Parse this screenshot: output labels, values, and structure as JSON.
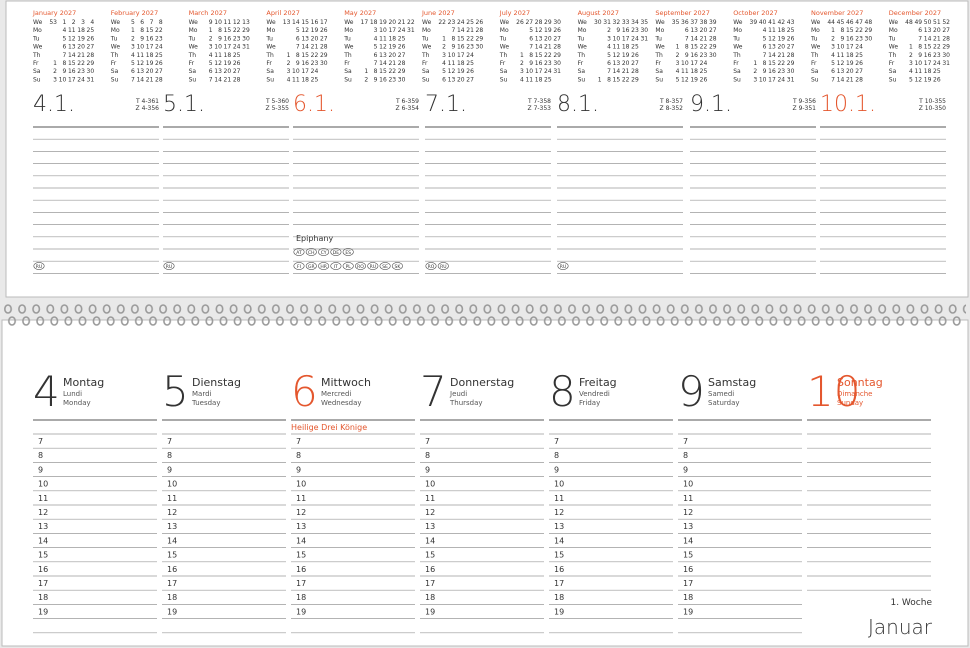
{
  "top": {
    "row_labels": [
      "We",
      "Mo",
      "Tu",
      "We",
      "Th",
      "Fr",
      "Sa",
      "Su"
    ],
    "months": [
      {
        "name": "January 2027",
        "weeks": [
          53,
          1,
          2,
          3,
          4
        ],
        "days": [
          [
            null,
            4,
            11,
            18,
            25
          ],
          [
            null,
            5,
            12,
            19,
            26
          ],
          [
            null,
            6,
            13,
            20,
            27
          ],
          [
            null,
            7,
            14,
            21,
            28
          ],
          [
            1,
            8,
            15,
            22,
            29
          ],
          [
            2,
            9,
            16,
            23,
            30
          ],
          [
            3,
            10,
            17,
            24,
            31
          ]
        ]
      },
      {
        "name": "February 2027",
        "weeks": [
          5,
          6,
          7,
          8
        ],
        "days": [
          [
            1,
            8,
            15,
            22
          ],
          [
            2,
            9,
            16,
            23
          ],
          [
            3,
            10,
            17,
            24
          ],
          [
            4,
            11,
            18,
            25
          ],
          [
            5,
            12,
            19,
            26
          ],
          [
            6,
            13,
            20,
            27
          ],
          [
            7,
            14,
            21,
            28
          ]
        ]
      },
      {
        "name": "March 2027",
        "weeks": [
          9,
          10,
          11,
          12,
          13
        ],
        "days": [
          [
            1,
            8,
            15,
            22,
            29
          ],
          [
            2,
            9,
            16,
            23,
            30
          ],
          [
            3,
            10,
            17,
            24,
            31
          ],
          [
            4,
            11,
            18,
            25
          ],
          [
            5,
            12,
            19,
            26
          ],
          [
            6,
            13,
            20,
            27
          ],
          [
            7,
            14,
            21,
            28
          ]
        ]
      },
      {
        "name": "April 2027",
        "weeks": [
          13,
          14,
          15,
          16,
          17
        ],
        "days": [
          [
            null,
            5,
            12,
            19,
            26
          ],
          [
            null,
            6,
            13,
            20,
            27
          ],
          [
            null,
            7,
            14,
            21,
            28
          ],
          [
            1,
            8,
            15,
            22,
            29
          ],
          [
            2,
            9,
            16,
            23,
            30
          ],
          [
            3,
            10,
            17,
            24
          ],
          [
            4,
            11,
            18,
            25
          ]
        ]
      },
      {
        "name": "May 2027",
        "weeks": [
          17,
          18,
          19,
          20,
          21,
          22
        ],
        "days": [
          [
            null,
            3,
            10,
            17,
            24,
            31
          ],
          [
            null,
            4,
            11,
            18,
            25
          ],
          [
            null,
            5,
            12,
            19,
            26
          ],
          [
            null,
            6,
            13,
            20,
            27
          ],
          [
            null,
            7,
            14,
            21,
            28
          ],
          [
            1,
            8,
            15,
            22,
            29
          ],
          [
            2,
            9,
            16,
            23,
            30
          ]
        ]
      },
      {
        "name": "June 2027",
        "weeks": [
          22,
          23,
          24,
          25,
          26
        ],
        "days": [
          [
            null,
            7,
            14,
            21,
            28
          ],
          [
            1,
            8,
            15,
            22,
            29
          ],
          [
            2,
            9,
            16,
            23,
            30
          ],
          [
            3,
            10,
            17,
            24
          ],
          [
            4,
            11,
            18,
            25
          ],
          [
            5,
            12,
            19,
            26
          ],
          [
            6,
            13,
            20,
            27
          ]
        ]
      },
      {
        "name": "July 2027",
        "weeks": [
          26,
          27,
          28,
          29,
          30
        ],
        "days": [
          [
            null,
            5,
            12,
            19,
            26
          ],
          [
            null,
            6,
            13,
            20,
            27
          ],
          [
            null,
            7,
            14,
            21,
            28
          ],
          [
            1,
            8,
            15,
            22,
            29
          ],
          [
            2,
            9,
            16,
            23,
            30
          ],
          [
            3,
            10,
            17,
            24,
            31
          ],
          [
            4,
            11,
            18,
            25
          ]
        ]
      },
      {
        "name": "August 2027",
        "weeks": [
          30,
          31,
          32,
          33,
          34,
          35
        ],
        "days": [
          [
            null,
            2,
            9,
            16,
            23,
            30
          ],
          [
            null,
            3,
            10,
            17,
            24,
            31
          ],
          [
            null,
            4,
            11,
            18,
            25
          ],
          [
            null,
            5,
            12,
            19,
            26
          ],
          [
            null,
            6,
            13,
            20,
            27
          ],
          [
            null,
            7,
            14,
            21,
            28
          ],
          [
            1,
            8,
            15,
            22,
            29
          ]
        ]
      },
      {
        "name": "September 2027",
        "weeks": [
          35,
          36,
          37,
          38,
          39
        ],
        "days": [
          [
            null,
            6,
            13,
            20,
            27
          ],
          [
            null,
            7,
            14,
            21,
            28
          ],
          [
            1,
            8,
            15,
            22,
            29
          ],
          [
            2,
            9,
            16,
            23,
            30
          ],
          [
            3,
            10,
            17,
            24
          ],
          [
            4,
            11,
            18,
            25
          ],
          [
            5,
            12,
            19,
            26
          ]
        ]
      },
      {
        "name": "October 2027",
        "weeks": [
          39,
          40,
          41,
          42,
          43
        ],
        "days": [
          [
            null,
            4,
            11,
            18,
            25
          ],
          [
            null,
            5,
            12,
            19,
            26
          ],
          [
            null,
            6,
            13,
            20,
            27
          ],
          [
            null,
            7,
            14,
            21,
            28
          ],
          [
            1,
            8,
            15,
            22,
            29
          ],
          [
            2,
            9,
            16,
            23,
            30
          ],
          [
            3,
            10,
            17,
            24,
            31
          ]
        ]
      },
      {
        "name": "November 2027",
        "weeks": [
          44,
          45,
          46,
          47,
          48
        ],
        "days": [
          [
            1,
            8,
            15,
            22,
            29
          ],
          [
            2,
            9,
            16,
            23,
            30
          ],
          [
            3,
            10,
            17,
            24
          ],
          [
            4,
            11,
            18,
            25
          ],
          [
            5,
            12,
            19,
            26
          ],
          [
            6,
            13,
            20,
            27
          ],
          [
            7,
            14,
            21,
            28
          ]
        ]
      },
      {
        "name": "December 2027",
        "weeks": [
          48,
          49,
          50,
          51,
          52
        ],
        "days": [
          [
            null,
            6,
            13,
            20,
            27
          ],
          [
            null,
            7,
            14,
            21,
            28
          ],
          [
            1,
            8,
            15,
            22,
            29
          ],
          [
            2,
            9,
            16,
            23,
            30
          ],
          [
            3,
            10,
            17,
            24,
            31
          ],
          [
            4,
            11,
            18,
            25
          ],
          [
            5,
            12,
            19,
            26
          ]
        ]
      }
    ],
    "days": [
      {
        "date": "4.1.",
        "t": "T 4-361",
        "z": "Z 4-356",
        "highlight": false,
        "countries": [
          [
            "RU"
          ]
        ]
      },
      {
        "date": "5.1.",
        "t": "T 5-360",
        "z": "Z 5-355",
        "highlight": false,
        "countries": [
          [
            "RU"
          ]
        ]
      },
      {
        "date": "6.1.",
        "t": "T 6-359",
        "z": "Z 6-354",
        "highlight": true,
        "holiday": "Epiphany",
        "countries": [
          [
            "AT",
            "CH",
            "CY",
            "DE",
            "ES"
          ],
          [
            "FI",
            "GR",
            "HR",
            "IT",
            "PL",
            "RO",
            "RU",
            "SE",
            "SK"
          ]
        ]
      },
      {
        "date": "7.1.",
        "t": "T 7-358",
        "z": "Z 7-353",
        "highlight": false,
        "countries": [
          [
            "RO",
            "RU"
          ]
        ]
      },
      {
        "date": "8.1.",
        "t": "T 8-357",
        "z": "Z 8-352",
        "highlight": false,
        "countries": [
          [
            "RU"
          ]
        ]
      },
      {
        "date": "9.1.",
        "t": "T 9-356",
        "z": "Z 9-351",
        "highlight": false,
        "countries": []
      },
      {
        "date": "10.1.",
        "t": "T 10-355",
        "z": "Z 10-350",
        "highlight": true,
        "countries": []
      }
    ]
  },
  "bottom": {
    "days": [
      {
        "num": 4,
        "de": "Montag",
        "fr": "Lundi",
        "en": "Monday",
        "highlight": false,
        "hours": true
      },
      {
        "num": 5,
        "de": "Dienstag",
        "fr": "Mardi",
        "en": "Tuesday",
        "highlight": false,
        "hours": true
      },
      {
        "num": 6,
        "de": "Mittwoch",
        "fr": "Mercredi",
        "en": "Wednesday",
        "highlight": "number",
        "hours": true,
        "holiday": "Heilige Drei Könige"
      },
      {
        "num": 7,
        "de": "Donnerstag",
        "fr": "Jeudi",
        "en": "Thursday",
        "highlight": false,
        "hours": true
      },
      {
        "num": 8,
        "de": "Freitag",
        "fr": "Vendredi",
        "en": "Friday",
        "highlight": false,
        "hours": true
      },
      {
        "num": 9,
        "de": "Samstag",
        "fr": "Samedi",
        "en": "Saturday",
        "highlight": false,
        "hours": true
      },
      {
        "num": 10,
        "de": "Sonntag",
        "fr": "Dimanche",
        "en": "Sunday",
        "highlight": true,
        "hours": false
      }
    ],
    "hours": [
      7,
      8,
      9,
      10,
      11,
      12,
      13,
      14,
      15,
      16,
      17,
      18,
      19
    ],
    "week": "1. Woche",
    "month": "Januar"
  }
}
